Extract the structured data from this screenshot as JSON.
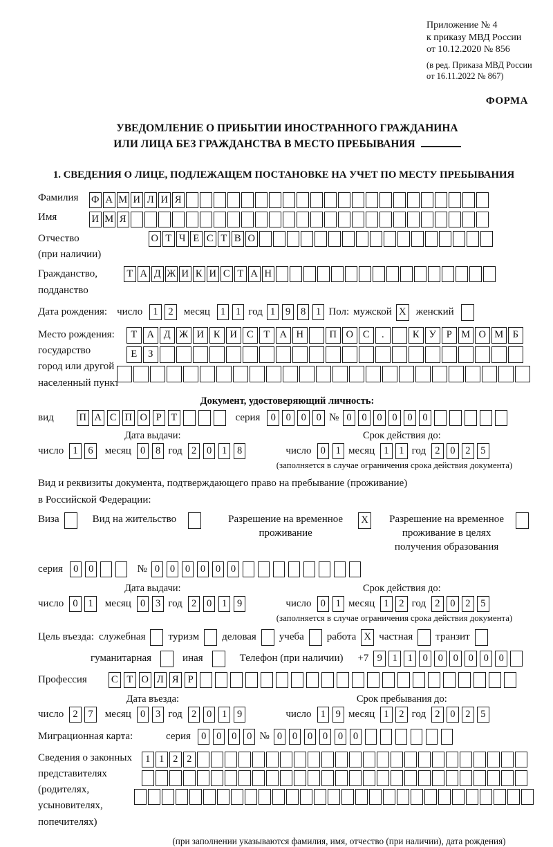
{
  "meta": {
    "appendix_lines": [
      "Приложение № 4",
      "к приказу МВД России",
      "от 10.12.2020 № 856"
    ],
    "amendment_lines": [
      "(в ред. Приказа МВД России",
      "от 16.11.2022 № 867)"
    ],
    "forma": "ФОРМА"
  },
  "title": {
    "line1": "УВЕДОМЛЕНИЕ О ПРИБЫТИИ ИНОСТРАННОГО ГРАЖДАНИНА",
    "line2": "ИЛИ ЛИЦА БЕЗ ГРАЖДАНСТВА В МЕСТО ПРЕБЫВАНИЯ"
  },
  "section1_title": "1. СВЕДЕНИЯ О ЛИЦЕ, ПОДЛЕЖАЩЕМ ПОСТАНОВКЕ НА УЧЕТ ПО МЕСТУ ПРЕБЫВАНИЯ",
  "labels": {
    "surname": "Фамилия",
    "given_name": "Имя",
    "patronymic_l1": "Отчество",
    "patronymic_l2": "(при наличии)",
    "citizenship_l1": "Гражданство,",
    "citizenship_l2": "подданство",
    "birth_date": "Дата рождения:",
    "day": "число",
    "month": "месяц",
    "year": "год",
    "sex": "Пол:",
    "male": "мужской",
    "female": "женский",
    "birthplace_l1": "Место рождения:",
    "birthplace_l2": "государство",
    "birthplace_l3": "город или другой",
    "birthplace_l4": "населенный пункт",
    "id_doc_header": "Документ, удостоверяющий личность:",
    "kind": "вид",
    "series": "серия",
    "number": "№",
    "issue_date": "Дата выдачи:",
    "valid_until": "Срок действия до:",
    "valid_note": "(заполняется в случае ограничения срока действия документа)",
    "stay_doc_l1": "Вид и реквизиты документа, подтверждающего право на пребывание (проживание)",
    "stay_doc_l2": "в Российской Федерации:",
    "visa": "Виза",
    "residence_permit": "Вид на жительство",
    "temp_residence": "Разрешение на временное проживание",
    "temp_residence_edu": "Разрешение на временное проживание в целях получения образования",
    "purpose": "Цель въезда:",
    "official": "служебная",
    "tourism": "туризм",
    "business": "деловая",
    "study": "учеба",
    "work": "работа",
    "private": "частная",
    "transit": "транзит",
    "humanitarian": "гуманитарная",
    "other": "иная",
    "phone": "Телефон (при наличии)",
    "phone_prefix": "+7",
    "profession": "Профессия",
    "entry_date": "Дата въезда:",
    "stay_until": "Срок пребывания до:",
    "migcard": "Миграционная карта:",
    "representatives": "Сведения о законных представителях (родителях, усыновителях, попечителях)",
    "representatives_note": "(при заполнении указываются фамилия, имя, отчество (при наличии), дата рождения)"
  },
  "boxes": {
    "surname": {
      "value": "ФАМИЛИЯ",
      "count": 29
    },
    "given_name": {
      "value": "ИМЯ",
      "count": 29
    },
    "patronymic": {
      "value": "ОТЧЕСТВО",
      "count": 25
    },
    "citizenship": {
      "value": "ТАДЖИКИСТАН",
      "count": 27
    },
    "birth_day": {
      "value": "12",
      "count": 2
    },
    "birth_month": {
      "value": "11",
      "count": 2
    },
    "birth_year": {
      "value": "1981",
      "count": 4
    },
    "sex_male": {
      "value": "X",
      "count": 1
    },
    "sex_female": {
      "value": "",
      "count": 1
    },
    "birthplace_row1": {
      "value": "ТАДЖИКИСТАН ПОС. КУРМОМБ",
      "count": 24,
      "wide": true
    },
    "birthplace_row2": {
      "value": "ЕЗ",
      "count": 24,
      "wide": true
    },
    "birthplace_row3": {
      "value": "",
      "count": 25,
      "wide": true
    },
    "id_doc_kind": {
      "value": "ПАСПОРТ",
      "count": 10
    },
    "id_doc_series": {
      "value": "0000",
      "count": 4
    },
    "id_doc_number": {
      "value": "000000",
      "count": 11
    },
    "id_issue_day": {
      "value": "16",
      "count": 2
    },
    "id_issue_month": {
      "value": "08",
      "count": 2
    },
    "id_issue_year": {
      "value": "2018",
      "count": 4
    },
    "id_valid_day": {
      "value": "01",
      "count": 2
    },
    "id_valid_month": {
      "value": "11",
      "count": 2
    },
    "id_valid_year": {
      "value": "2025",
      "count": 4
    },
    "visa_cb": {
      "value": "",
      "count": 1
    },
    "residence_permit_cb": {
      "value": "",
      "count": 1
    },
    "temp_residence_cb": {
      "value": "X",
      "count": 1
    },
    "temp_residence_edu_cb": {
      "value": "",
      "count": 1
    },
    "stay_doc_series": {
      "value": "00",
      "count": 4
    },
    "stay_doc_number": {
      "value": "000000",
      "count": 14
    },
    "stay_issue_day": {
      "value": "01",
      "count": 2
    },
    "stay_issue_month": {
      "value": "03",
      "count": 2
    },
    "stay_issue_year": {
      "value": "2019",
      "count": 4
    },
    "stay_valid_day": {
      "value": "01",
      "count": 2
    },
    "stay_valid_month": {
      "value": "12",
      "count": 2
    },
    "stay_valid_year": {
      "value": "2025",
      "count": 4
    },
    "purpose_official": {
      "value": "",
      "count": 1
    },
    "purpose_tourism": {
      "value": "",
      "count": 1
    },
    "purpose_business": {
      "value": "",
      "count": 1
    },
    "purpose_study": {
      "value": "",
      "count": 1
    },
    "purpose_work": {
      "value": "X",
      "count": 1
    },
    "purpose_private": {
      "value": "",
      "count": 1
    },
    "purpose_transit": {
      "value": "",
      "count": 1
    },
    "purpose_humanitarian": {
      "value": "",
      "count": 1
    },
    "purpose_other": {
      "value": "",
      "count": 1
    },
    "phone": {
      "value": "911000000",
      "count": 10
    },
    "profession": {
      "value": "СТОЛЯР",
      "count": 27
    },
    "entry_day": {
      "value": "27",
      "count": 2
    },
    "entry_month": {
      "value": "03",
      "count": 2
    },
    "entry_year": {
      "value": "2019",
      "count": 4
    },
    "stay_until_day": {
      "value": "19",
      "count": 2
    },
    "stay_until_month": {
      "value": "12",
      "count": 2
    },
    "stay_until_year": {
      "value": "2025",
      "count": 4
    },
    "migcard_series": {
      "value": "0000",
      "count": 4
    },
    "migcard_number": {
      "value": "000000",
      "count": 12
    },
    "representatives_row1": {
      "value": "1122",
      "count": 28
    },
    "representatives_row2": {
      "value": "",
      "count": 28
    },
    "representatives_row3": {
      "value": "",
      "count": 29
    }
  }
}
